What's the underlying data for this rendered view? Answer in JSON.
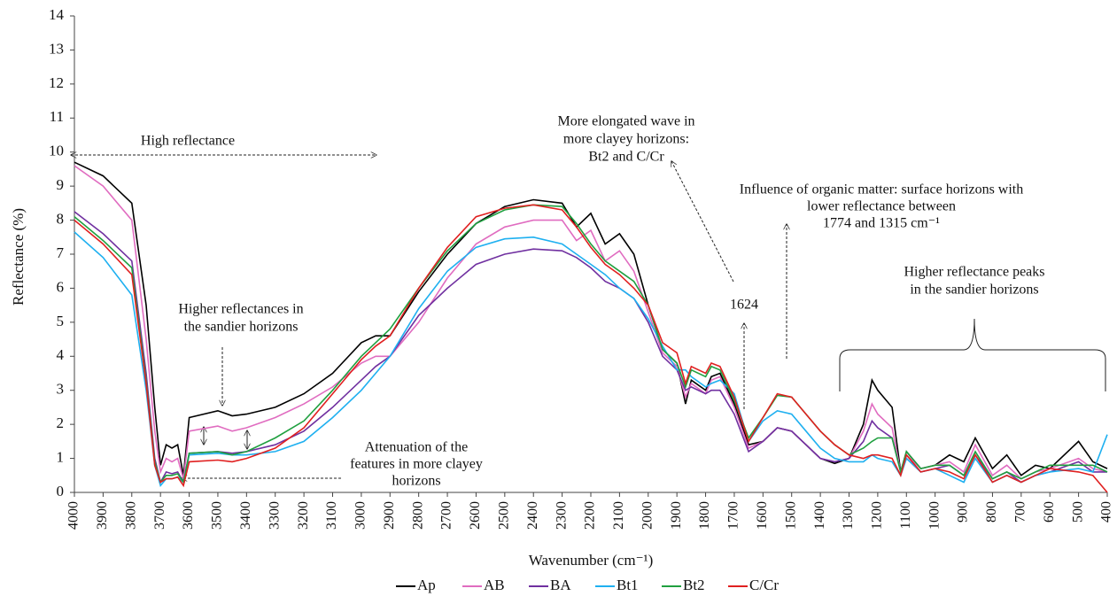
{
  "chart_data": {
    "type": "line",
    "xlabel": "Wavenumber (cm⁻¹)",
    "ylabel": "Reflectance  (%)",
    "x": [
      4000,
      3900,
      3800,
      3750,
      3720,
      3700,
      3680,
      3660,
      3640,
      3620,
      3600,
      3500,
      3450,
      3400,
      3300,
      3200,
      3100,
      3000,
      2950,
      2900,
      2800,
      2700,
      2600,
      2500,
      2400,
      2300,
      2250,
      2200,
      2150,
      2100,
      2050,
      2000,
      1950,
      1900,
      1870,
      1850,
      1800,
      1780,
      1750,
      1700,
      1650,
      1600,
      1550,
      1500,
      1450,
      1400,
      1350,
      1300,
      1250,
      1220,
      1200,
      1150,
      1120,
      1100,
      1050,
      1000,
      950,
      900,
      860,
      800,
      750,
      700,
      650,
      600,
      500,
      450,
      400
    ],
    "series": [
      {
        "name": "Ap",
        "color": "#000000",
        "values": [
          9.7,
          9.3,
          8.5,
          5.5,
          2.5,
          0.8,
          1.4,
          1.3,
          1.4,
          0.5,
          2.2,
          2.4,
          2.25,
          2.3,
          2.5,
          2.9,
          3.5,
          4.4,
          4.6,
          4.6,
          5.9,
          7.0,
          7.9,
          8.4,
          8.6,
          8.5,
          7.8,
          8.2,
          7.3,
          7.6,
          7.0,
          5.5,
          4.2,
          3.8,
          2.6,
          3.3,
          3.0,
          3.4,
          3.5,
          2.6,
          1.4,
          1.5,
          1.9,
          1.8,
          1.4,
          1.0,
          0.85,
          1.0,
          2.0,
          3.3,
          3.0,
          2.5,
          0.6,
          1.2,
          0.7,
          0.8,
          1.1,
          0.9,
          1.6,
          0.7,
          1.1,
          0.5,
          0.8,
          0.7,
          1.5,
          0.9,
          0.7
        ]
      },
      {
        "name": "AB",
        "color": "#e06cc0",
        "values": [
          9.6,
          9.0,
          8.0,
          4.5,
          1.8,
          0.6,
          1.0,
          0.9,
          1.0,
          0.4,
          1.8,
          1.95,
          1.8,
          1.9,
          2.2,
          2.6,
          3.1,
          3.8,
          4.0,
          4.0,
          5.0,
          6.3,
          7.3,
          7.8,
          8.0,
          8.0,
          7.4,
          7.7,
          6.8,
          7.1,
          6.5,
          5.3,
          4.1,
          3.7,
          2.8,
          3.2,
          2.9,
          3.3,
          3.4,
          2.5,
          1.3,
          1.5,
          1.9,
          1.8,
          1.4,
          1.0,
          0.9,
          1.0,
          1.8,
          2.6,
          2.3,
          1.9,
          0.6,
          1.1,
          0.7,
          0.8,
          0.9,
          0.6,
          1.4,
          0.5,
          0.8,
          0.4,
          0.6,
          0.7,
          1.0,
          0.7,
          0.6
        ]
      },
      {
        "name": "BA",
        "color": "#7030a0",
        "values": [
          8.25,
          7.6,
          6.8,
          3.5,
          1.0,
          0.3,
          0.6,
          0.55,
          0.6,
          0.3,
          1.15,
          1.2,
          1.15,
          1.2,
          1.4,
          1.8,
          2.5,
          3.3,
          3.7,
          4.0,
          5.2,
          6.0,
          6.7,
          7.0,
          7.15,
          7.1,
          6.9,
          6.6,
          6.2,
          6.0,
          5.7,
          5.0,
          4.0,
          3.6,
          3.0,
          3.1,
          2.9,
          3.0,
          3.0,
          2.3,
          1.2,
          1.5,
          1.9,
          1.8,
          1.4,
          1.0,
          0.9,
          1.0,
          1.5,
          2.1,
          1.9,
          1.6,
          0.6,
          1.0,
          0.6,
          0.7,
          0.8,
          0.5,
          1.1,
          0.4,
          0.6,
          0.3,
          0.5,
          0.6,
          0.9,
          0.6,
          0.6
        ]
      },
      {
        "name": "Bt1",
        "color": "#1fb0f0",
        "values": [
          7.65,
          6.9,
          5.8,
          3.0,
          0.8,
          0.2,
          0.4,
          0.4,
          0.45,
          0.3,
          1.1,
          1.15,
          1.1,
          1.1,
          1.2,
          1.5,
          2.2,
          3.0,
          3.5,
          4.0,
          5.4,
          6.5,
          7.2,
          7.45,
          7.5,
          7.3,
          7.0,
          6.7,
          6.4,
          6.0,
          5.7,
          5.1,
          4.3,
          3.6,
          3.6,
          3.4,
          3.1,
          3.2,
          3.3,
          2.9,
          1.5,
          2.1,
          2.4,
          2.3,
          1.8,
          1.3,
          1.0,
          0.9,
          0.9,
          1.1,
          1.0,
          0.9,
          0.5,
          1.0,
          0.6,
          0.7,
          0.5,
          0.3,
          1.0,
          0.3,
          0.5,
          0.3,
          0.5,
          0.6,
          0.7,
          0.6,
          1.7
        ]
      },
      {
        "name": "Bt2",
        "color": "#20a040",
        "values": [
          8.1,
          7.4,
          6.6,
          3.3,
          0.9,
          0.3,
          0.5,
          0.5,
          0.55,
          0.3,
          1.15,
          1.2,
          1.1,
          1.2,
          1.6,
          2.1,
          3.0,
          4.0,
          4.4,
          4.8,
          6.0,
          7.1,
          7.9,
          8.3,
          8.45,
          8.4,
          7.9,
          7.3,
          6.8,
          6.5,
          6.2,
          5.5,
          4.2,
          3.8,
          3.1,
          3.6,
          3.4,
          3.7,
          3.6,
          2.7,
          1.6,
          2.2,
          2.85,
          2.8,
          2.3,
          1.8,
          1.4,
          1.1,
          1.3,
          1.5,
          1.6,
          1.6,
          0.6,
          1.2,
          0.7,
          0.8,
          0.8,
          0.5,
          1.2,
          0.4,
          0.6,
          0.4,
          0.6,
          0.8,
          0.8,
          0.8,
          0.6
        ]
      },
      {
        "name": "C/Cr",
        "color": "#e02020",
        "values": [
          8.0,
          7.3,
          6.4,
          3.2,
          0.8,
          0.3,
          0.4,
          0.4,
          0.45,
          0.2,
          0.9,
          0.95,
          0.9,
          1.0,
          1.3,
          1.9,
          2.9,
          3.9,
          4.3,
          4.6,
          6.0,
          7.2,
          8.1,
          8.35,
          8.45,
          8.3,
          7.8,
          7.2,
          6.7,
          6.4,
          6.0,
          5.5,
          4.4,
          4.1,
          3.2,
          3.7,
          3.5,
          3.8,
          3.7,
          2.8,
          1.5,
          2.2,
          2.9,
          2.8,
          2.3,
          1.8,
          1.4,
          1.1,
          1.0,
          1.1,
          1.1,
          1.0,
          0.5,
          1.1,
          0.6,
          0.7,
          0.6,
          0.4,
          1.1,
          0.3,
          0.5,
          0.3,
          0.5,
          0.7,
          0.6,
          0.5,
          0
        ]
      }
    ],
    "xlim": [
      4000,
      400
    ],
    "xticks": [
      4000,
      3900,
      3800,
      3700,
      3600,
      3500,
      3400,
      3300,
      3200,
      3100,
      3000,
      2900,
      2800,
      2700,
      2600,
      2500,
      2400,
      2300,
      2200,
      2100,
      2000,
      1900,
      1800,
      1700,
      1600,
      1500,
      1400,
      1300,
      1200,
      1100,
      1000,
      900,
      800,
      700,
      600,
      500,
      400
    ],
    "ylim": [
      0,
      14
    ],
    "yticks": [
      0,
      1,
      2,
      3,
      4,
      5,
      6,
      7,
      8,
      9,
      10,
      11,
      12,
      13,
      14
    ],
    "grid": false,
    "legend": "bottom",
    "annotations": [
      {
        "lines": [
          "High reflectance"
        ]
      },
      {
        "lines": [
          "Higher reflectances in",
          "the sandier horizons"
        ]
      },
      {
        "lines": [
          "Attenuation of the",
          "features in more clayey",
          "horizons"
        ]
      },
      {
        "lines": [
          "More elongated wave in",
          "more clayey horizons:",
          "Bt2 and C/Cr"
        ]
      },
      {
        "lines": [
          "Influence of organic matter: surface horizons with",
          "lower reflectance between",
          "1774 and 1315 cm⁻¹"
        ]
      },
      {
        "lines": [
          "1624"
        ]
      },
      {
        "lines": [
          "Higher reflectance peaks",
          "in the sandier horizons"
        ]
      }
    ]
  }
}
